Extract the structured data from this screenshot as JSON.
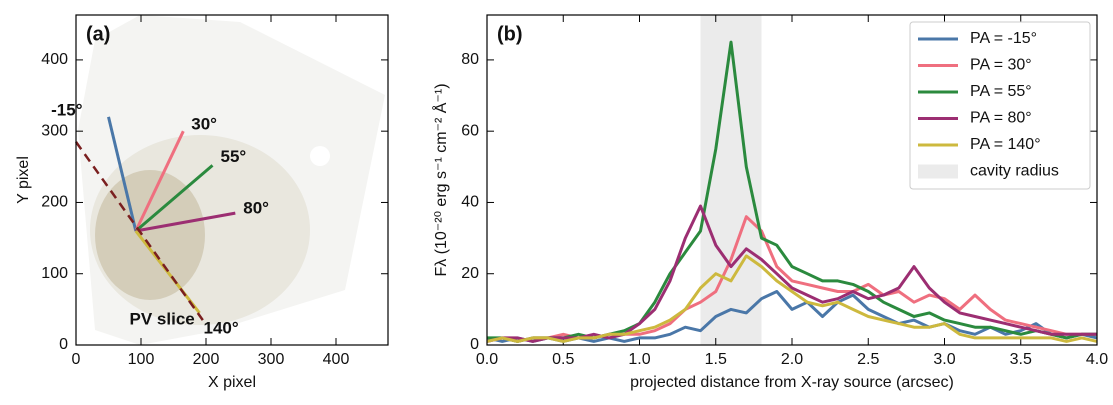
{
  "chart_data": [
    {
      "type": "line",
      "annotation": "(a)",
      "xlabel": "X pixel",
      "ylabel": "Y pixel",
      "xlim": [
        0,
        480
      ],
      "ylim": [
        0,
        463
      ],
      "xticks": [
        0,
        100,
        200,
        300,
        400
      ],
      "yticks": [
        0,
        100,
        200,
        300,
        400
      ],
      "series": [
        {
          "name": "-15°",
          "color": "#4a77a8",
          "x": [
            92,
            50
          ],
          "values": [
            160,
            320
          ]
        },
        {
          "name": "30°",
          "color": "#ef6f7f",
          "x": [
            92,
            165
          ],
          "values": [
            160,
            300
          ]
        },
        {
          "name": "55°",
          "color": "#2b8a3e",
          "x": [
            92,
            210
          ],
          "values": [
            160,
            252
          ]
        },
        {
          "name": "80°",
          "color": "#9c2e72",
          "x": [
            92,
            245
          ],
          "values": [
            160,
            185
          ]
        },
        {
          "name": "140°",
          "color": "#cdb93e",
          "x": [
            92,
            190
          ],
          "values": [
            160,
            45
          ]
        },
        {
          "name": "PV slice",
          "color": "#7a1f1f",
          "linestyle": "dashed",
          "x": [
            0,
            195
          ],
          "values": [
            285,
            35
          ]
        }
      ]
    },
    {
      "type": "line",
      "annotation": "(b)",
      "xlabel": "projected distance from X-ray source (arcsec)",
      "ylabel": "Fλ (10⁻²⁰ erg s⁻¹ cm⁻² Å⁻¹)",
      "xlim": [
        0,
        4
      ],
      "ylim": [
        0,
        92.6
      ],
      "xticks": [
        {
          "value": 0,
          "label": "0.0"
        },
        0.5,
        {
          "value": 1,
          "label": "1.0"
        },
        1.5,
        {
          "value": 2,
          "label": "2.0"
        },
        2.5,
        {
          "value": 3,
          "label": "3.0"
        },
        3.5,
        {
          "value": 4,
          "label": "4.0"
        }
      ],
      "yticks": [
        0,
        20,
        40,
        60,
        80
      ],
      "legend": "upper right",
      "span": {
        "name": "cavity radius",
        "x": [
          1.4,
          1.8
        ],
        "color": "#ebebeb"
      },
      "x": [
        0,
        0.1,
        0.2,
        0.3,
        0.4,
        0.5,
        0.6,
        0.7,
        0.8,
        0.9,
        1.0,
        1.1,
        1.2,
        1.3,
        1.4,
        1.5,
        1.6,
        1.7,
        1.8,
        1.9,
        2.0,
        2.1,
        2.2,
        2.3,
        2.4,
        2.5,
        2.6,
        2.7,
        2.8,
        2.9,
        3.0,
        3.1,
        3.2,
        3.3,
        3.4,
        3.5,
        3.6,
        3.7,
        3.8,
        3.9,
        4.0
      ],
      "series": [
        {
          "name": "PA = -15°",
          "color": "#4a77a8",
          "values": [
            2,
            1,
            2,
            1,
            2,
            1,
            2,
            1,
            2,
            1,
            2,
            2,
            3,
            5,
            4,
            8,
            10,
            9,
            13,
            15,
            10,
            12,
            8,
            12,
            14,
            10,
            8,
            6,
            7,
            5,
            6,
            4,
            3,
            5,
            3,
            4,
            6,
            3,
            2,
            3,
            2
          ]
        },
        {
          "name": "PA = 30°",
          "color": "#ef6f7f",
          "values": [
            1,
            2,
            1,
            2,
            2,
            3,
            2,
            2,
            3,
            3,
            3,
            4,
            6,
            10,
            12,
            15,
            24,
            36,
            32,
            22,
            18,
            17,
            16,
            15,
            15,
            17,
            14,
            15,
            12,
            14,
            13,
            10,
            14,
            10,
            7,
            6,
            5,
            4,
            3,
            3,
            3
          ]
        },
        {
          "name": "PA = 55°",
          "color": "#2b8a3e",
          "values": [
            2,
            2,
            1,
            2,
            2,
            2,
            3,
            2,
            3,
            4,
            6,
            12,
            20,
            26,
            32,
            55,
            85,
            50,
            30,
            28,
            22,
            20,
            18,
            18,
            17,
            15,
            12,
            10,
            8,
            9,
            7,
            6,
            5,
            5,
            4,
            3,
            4,
            3,
            2,
            3,
            3
          ]
        },
        {
          "name": "PA = 80°",
          "color": "#9c2e72",
          "values": [
            1,
            2,
            2,
            1,
            2,
            2,
            2,
            3,
            2,
            3,
            6,
            10,
            18,
            30,
            39,
            28,
            22,
            27,
            24,
            20,
            16,
            14,
            12,
            13,
            15,
            13,
            14,
            16,
            22,
            16,
            12,
            9,
            8,
            7,
            6,
            5,
            4,
            3,
            3,
            3,
            3
          ]
        },
        {
          "name": "PA = 140°",
          "color": "#cdb93e",
          "values": [
            1,
            2,
            1,
            2,
            2,
            1,
            2,
            2,
            3,
            3,
            4,
            5,
            7,
            10,
            16,
            20,
            18,
            25,
            22,
            18,
            15,
            12,
            11,
            12,
            10,
            8,
            7,
            6,
            5,
            5,
            6,
            3,
            2,
            2,
            2,
            2,
            2,
            2,
            1,
            2,
            1
          ]
        }
      ]
    }
  ]
}
